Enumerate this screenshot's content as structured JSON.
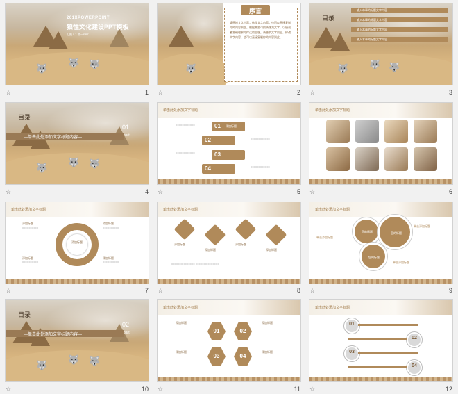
{
  "slides": [
    {
      "num": "1",
      "title": "狼性文化建设PPT模板",
      "subtitle": "201XPOWERPOINT",
      "byline": "汇报人：第一PPT"
    },
    {
      "num": "2",
      "heading": "序言",
      "body": "请替换文字内容，修改文字内容，也可以直接复制你的内容到此。根据需要可酌情增减文字，以便观者准确理解你传达的思想。请替换文字内容，修改文字内容，也可以直接复制你的内容到此。"
    },
    {
      "num": "3",
      "heading": "目录",
      "items": [
        "输入本章的标题文字内容",
        "输入本章的标题文字内容",
        "输入本章的标题文字内容",
        "输入本章的标题文字内容"
      ]
    },
    {
      "num": "4",
      "heading": "目录",
      "section_num": "01",
      "section_label": "part",
      "banner": "—单击此处添加文字标题内容—"
    },
    {
      "num": "5",
      "header": "单击此处添加文字标题",
      "steps": [
        "01",
        "02",
        "03",
        "04"
      ],
      "step_label": "添加标题"
    },
    {
      "num": "6",
      "header": "单击此处添加文字标题"
    },
    {
      "num": "7",
      "header": "单击此处添加文字标题",
      "center": "添加标题",
      "labels": [
        "添加标题",
        "添加标题",
        "添加标题",
        "添加标题"
      ]
    },
    {
      "num": "8",
      "header": "单击此处添加文字标题",
      "labels": [
        "添加标题",
        "添加标题",
        "添加标题",
        "添加标题"
      ]
    },
    {
      "num": "9",
      "header": "单击此处添加文字标题",
      "circles": [
        "您的标题",
        "您的标题",
        "您的标题"
      ],
      "labels": [
        "单击添加标题",
        "单击添加标题",
        "单击添加标题"
      ]
    },
    {
      "num": "10",
      "heading": "目录",
      "section_num": "02",
      "section_label": "part",
      "banner": "—单击此处添加文字标题内容—"
    },
    {
      "num": "11",
      "header": "单击此处添加文字标题",
      "hexes": [
        "01",
        "02",
        "03",
        "04"
      ],
      "labels": [
        "添加标题",
        "添加标题",
        "添加标题",
        "添加标题"
      ]
    },
    {
      "num": "12",
      "header": "单击此处添加文字标题",
      "items": [
        "01",
        "02",
        "03",
        "04"
      ]
    }
  ],
  "footer_icon": "star-icon",
  "colors": {
    "accent": "#b08a5a",
    "dark": "#5a4632"
  }
}
